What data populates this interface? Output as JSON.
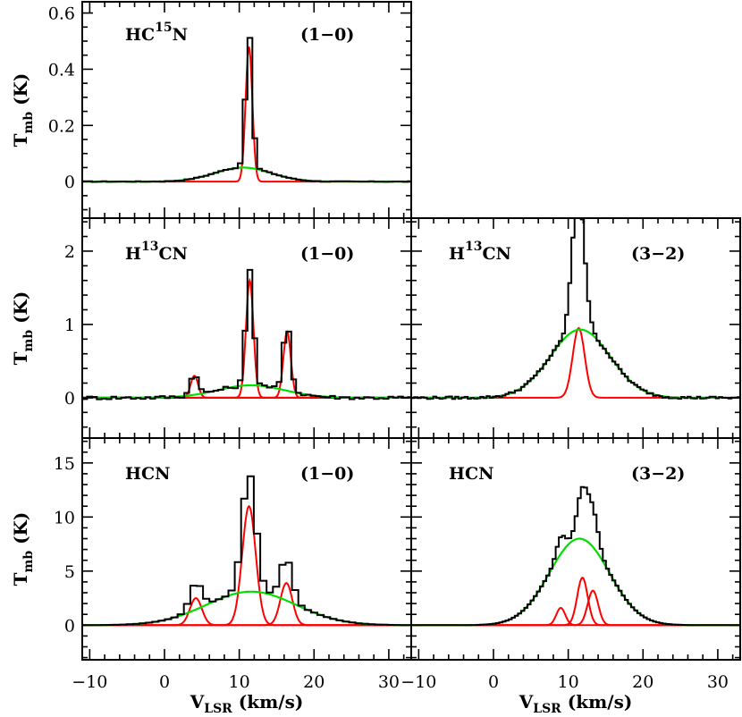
{
  "chart_data": {
    "type": "line",
    "x_axis": {
      "label_main": "V",
      "label_sub": "LSR",
      "label_unit": " (km/s)",
      "xlim": [
        -11,
        33
      ],
      "ticks": [
        -10,
        0,
        10,
        20,
        30
      ],
      "tick_labels": [
        "−10",
        "0",
        "10",
        "20",
        "30"
      ]
    },
    "y_label": {
      "main": "T",
      "sub": "mb",
      "unit": " (K)"
    },
    "panels": [
      {
        "id": "hc15n-1-0",
        "column": "left",
        "row": 0,
        "molecule": {
          "base": "HC",
          "sup": "15",
          "tail": "N"
        },
        "transition": "(1−0)",
        "ylim": [
          -0.13,
          0.64
        ],
        "yticks": [
          0,
          0.2,
          0.4,
          0.6
        ],
        "ytick_labels": [
          "0",
          "0.2",
          "0.4",
          "0.6"
        ],
        "show_ylabel": true,
        "show_xlabels": false,
        "gaussians_red": [
          {
            "amp": 0.48,
            "center": 11.3,
            "sigma": 0.45
          }
        ],
        "gaussian_green": {
          "amp": 0.05,
          "center": 10.5,
          "sigma": 3.8
        },
        "hist_noise": 0.004
      },
      {
        "id": "h13cn-1-0",
        "column": "left",
        "row": 1,
        "molecule": {
          "base": "H",
          "sup": "13",
          "tail": "CN"
        },
        "transition": "(1−0)",
        "ylim": [
          -0.55,
          2.45
        ],
        "yticks": [
          0,
          1,
          2
        ],
        "ytick_labels": [
          "0",
          "1",
          "2"
        ],
        "show_ylabel": true,
        "show_xlabels": false,
        "gaussians_red": [
          {
            "amp": 0.3,
            "center": 4.0,
            "sigma": 0.5
          },
          {
            "amp": 1.6,
            "center": 11.4,
            "sigma": 0.5
          },
          {
            "amp": 0.9,
            "center": 16.4,
            "sigma": 0.5
          }
        ],
        "gaussian_green": {
          "amp": 0.17,
          "center": 11.6,
          "sigma": 4.5
        },
        "hist_noise": 0.02
      },
      {
        "id": "h13cn-3-2",
        "column": "right",
        "row": 1,
        "molecule": {
          "base": "H",
          "sup": "13",
          "tail": "CN"
        },
        "transition": "(3−2)",
        "ylim": [
          -0.55,
          2.45
        ],
        "yticks": [
          0,
          1,
          2
        ],
        "ytick_labels": [
          "0",
          "1",
          "2"
        ],
        "show_ylabel": false,
        "show_xlabels": false,
        "gaussians_red": [
          {
            "amp": 0.95,
            "center": 11.4,
            "sigma": 0.8
          }
        ],
        "gaussian_green": {
          "amp": 0.93,
          "center": 11.6,
          "sigma": 4.0
        },
        "extra_peak": {
          "amp": 0.95,
          "center": 11.3,
          "sigma": 0.8
        },
        "hist_noise": 0.015
      },
      {
        "id": "hcn-1-0",
        "column": "left",
        "row": 2,
        "molecule": {
          "base": "HCN",
          "sup": "",
          "tail": ""
        },
        "transition": "(1−0)",
        "ylim": [
          -3.2,
          17.3
        ],
        "yticks": [
          0,
          5,
          10,
          15
        ],
        "ytick_labels": [
          "0",
          "5",
          "10",
          "15"
        ],
        "show_ylabel": true,
        "show_xlabels": true,
        "gaussians_red": [
          {
            "amp": 2.5,
            "center": 4.2,
            "sigma": 0.8
          },
          {
            "amp": 11.0,
            "center": 11.3,
            "sigma": 0.9
          },
          {
            "amp": 3.9,
            "center": 16.3,
            "sigma": 0.8
          }
        ],
        "gaussian_green": {
          "amp": 3.1,
          "center": 11.6,
          "sigma": 6.0
        },
        "extra_peak": null,
        "hist_noise": 0.0
      },
      {
        "id": "hcn-3-2",
        "column": "right",
        "row": 2,
        "molecule": {
          "base": "HCN",
          "sup": "",
          "tail": ""
        },
        "transition": "(3−2)",
        "ylim": [
          -3.2,
          17.3
        ],
        "yticks": [
          0,
          5,
          10,
          15
        ],
        "ytick_labels": [
          "0",
          "5",
          "10",
          "15"
        ],
        "show_ylabel": false,
        "show_xlabels": true,
        "gaussians_red": [
          {
            "amp": 1.6,
            "center": 9.0,
            "sigma": 0.6
          },
          {
            "amp": 4.4,
            "center": 11.9,
            "sigma": 0.7
          },
          {
            "amp": 3.2,
            "center": 13.3,
            "sigma": 0.7
          }
        ],
        "gaussian_green": {
          "amp": 8.0,
          "center": 11.5,
          "sigma": 4.0
        },
        "hist_noise": 0.0
      }
    ]
  }
}
